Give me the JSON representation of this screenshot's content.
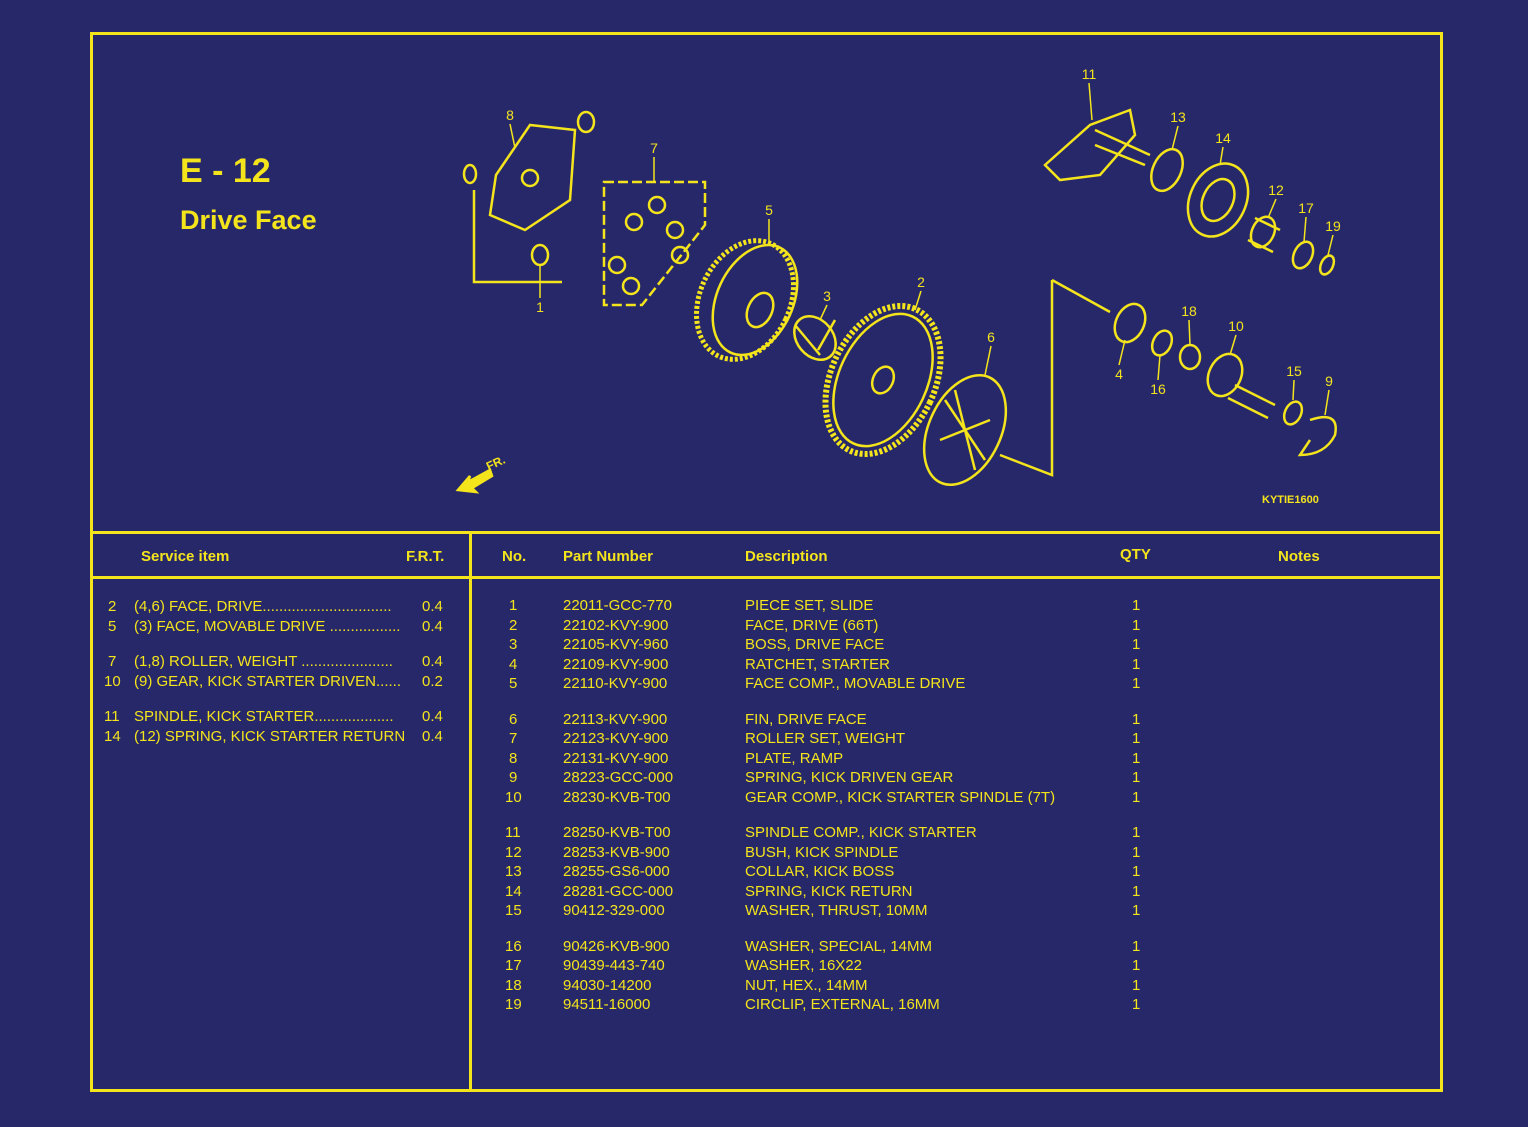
{
  "page": {
    "code": "E - 12",
    "title": "Drive Face",
    "diagram_code": "KYTIE1600",
    "front_marker": "FR."
  },
  "colors": {
    "background": "#27286a",
    "foreground": "#f4e41c"
  },
  "diagram_callouts": [
    "8",
    "1",
    "7",
    "5",
    "3",
    "2",
    "6",
    "11",
    "13",
    "14",
    "12",
    "17",
    "19",
    "18",
    "10",
    "4",
    "16",
    "15",
    "9"
  ],
  "service_table": {
    "headers": {
      "item": "Service item",
      "frt": "F.R.T."
    },
    "rows": [
      {
        "no": "2",
        "item": "(4,6)  FACE, DRIVE...............................",
        "frt": "0.4"
      },
      {
        "no": "5",
        "item": "(3) FACE, MOVABLE DRIVE .................",
        "frt": "0.4"
      },
      {
        "no": "7",
        "item": "(1,8) ROLLER, WEIGHT ......................",
        "frt": "0.4"
      },
      {
        "no": "10",
        "item": "(9) GEAR, KICK STARTER DRIVEN......",
        "frt": "0.2"
      },
      {
        "no": "11",
        "item": "SPINDLE, KICK STARTER...................",
        "frt": "0.4"
      },
      {
        "no": "14",
        "item": "(12) SPRING, KICK STARTER RETURN",
        "frt": "0.4"
      }
    ]
  },
  "parts_table": {
    "headers": {
      "no": "No.",
      "part_number": "Part Number",
      "description": "Description",
      "qty": "QTY",
      "notes": "Notes"
    },
    "rows": [
      {
        "no": "1",
        "part": "22011-GCC-770",
        "desc": "PIECE SET, SLIDE",
        "qty": "1"
      },
      {
        "no": "2",
        "part": "22102-KVY-900",
        "desc": "FACE, DRIVE (66T)",
        "qty": "1"
      },
      {
        "no": "3",
        "part": "22105-KVY-960",
        "desc": "BOSS, DRIVE FACE",
        "qty": "1"
      },
      {
        "no": "4",
        "part": "22109-KVY-900",
        "desc": "RATCHET, STARTER",
        "qty": "1"
      },
      {
        "no": "5",
        "part": "22110-KVY-900",
        "desc": "FACE COMP., MOVABLE DRIVE",
        "qty": "1"
      },
      {
        "no": "6",
        "part": "22113-KVY-900",
        "desc": "FIN, DRIVE FACE",
        "qty": "1"
      },
      {
        "no": "7",
        "part": "22123-KVY-900",
        "desc": "ROLLER SET, WEIGHT",
        "qty": "1"
      },
      {
        "no": "8",
        "part": "22131-KVY-900",
        "desc": "PLATE, RAMP",
        "qty": "1"
      },
      {
        "no": "9",
        "part": "28223-GCC-000",
        "desc": "SPRING, KICK DRIVEN GEAR",
        "qty": "1"
      },
      {
        "no": "10",
        "part": "28230-KVB-T00",
        "desc": "GEAR COMP., KICK STARTER  SPINDLE (7T)",
        "qty": "1"
      },
      {
        "no": "11",
        "part": "28250-KVB-T00",
        "desc": "SPINDLE COMP., KICK STARTER",
        "qty": "1"
      },
      {
        "no": "12",
        "part": "28253-KVB-900",
        "desc": "BUSH, KICK SPINDLE",
        "qty": "1"
      },
      {
        "no": "13",
        "part": "28255-GS6-000",
        "desc": "COLLAR, KICK BOSS",
        "qty": "1"
      },
      {
        "no": "14",
        "part": "28281-GCC-000",
        "desc": "SPRING, KICK RETURN",
        "qty": "1"
      },
      {
        "no": "15",
        "part": "90412-329-000",
        "desc": "WASHER, THRUST, 10MM",
        "qty": "1"
      },
      {
        "no": "16",
        "part": "90426-KVB-900",
        "desc": "WASHER, SPECIAL, 14MM",
        "qty": "1"
      },
      {
        "no": "17",
        "part": "90439-443-740",
        "desc": "WASHER, 16X22",
        "qty": "1"
      },
      {
        "no": "18",
        "part": "94030-14200",
        "desc": "NUT, HEX., 14MM",
        "qty": "1"
      },
      {
        "no": "19",
        "part": "94511-16000",
        "desc": "CIRCLIP, EXTERNAL, 16MM",
        "qty": "1"
      }
    ]
  }
}
